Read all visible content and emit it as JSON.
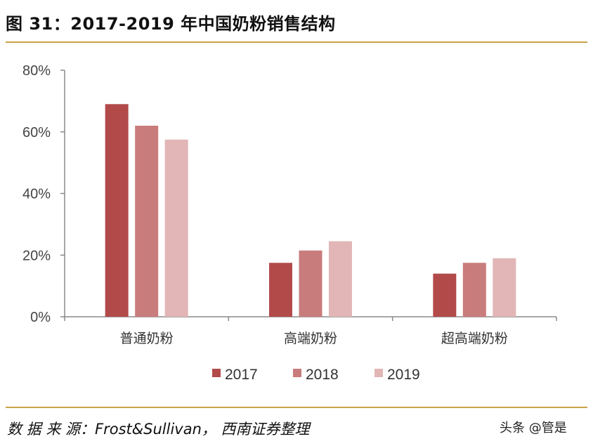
{
  "figure": {
    "title": "图 31：2017-2019 年中国奶粉销售结构",
    "source": "数 据 来 源：Frost&Sullivan， 西南证券整理",
    "watermark": "头条 @管是"
  },
  "chart_data": {
    "type": "bar",
    "categories": [
      "普通奶粉",
      "高端奶粉",
      "超高端奶粉"
    ],
    "series": [
      {
        "name": "2017",
        "color": "#b24a4a",
        "values": [
          69,
          17.5,
          14
        ]
      },
      {
        "name": "2018",
        "color": "#c97c7c",
        "values": [
          62,
          21.5,
          17.5
        ]
      },
      {
        "name": "2019",
        "color": "#e2b6b6",
        "values": [
          57.5,
          24.5,
          19
        ]
      }
    ],
    "ylim": [
      0,
      80
    ],
    "yticks": [
      "0%",
      "20%",
      "40%",
      "60%",
      "80%"
    ],
    "ytick_values": [
      0,
      20,
      40,
      60,
      80
    ],
    "grid": false,
    "legend": "bottom"
  }
}
